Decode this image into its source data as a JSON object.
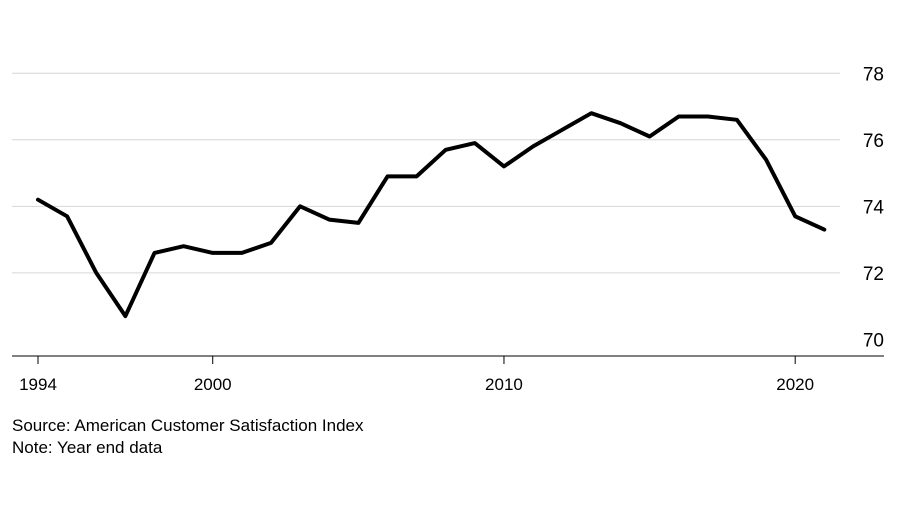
{
  "chart_data": {
    "type": "line",
    "title": "",
    "xlabel": "",
    "ylabel": "",
    "xlim": [
      1994,
      2022.5
    ],
    "ylim": [
      69.5,
      79
    ],
    "y_ticks": [
      70,
      72,
      74,
      76,
      78
    ],
    "x_ticks": [
      1994,
      2000,
      2010,
      2020
    ],
    "grid": "horizontal",
    "y_axis_side": "right",
    "series": [
      {
        "color": "#000000",
        "x": [
          1994,
          1995,
          1996,
          1997,
          1998,
          1999,
          2000,
          2001,
          2002,
          2003,
          2004,
          2005,
          2006,
          2007,
          2008,
          2009,
          2010,
          2011,
          2012,
          2013,
          2014,
          2015,
          2016,
          2017,
          2018,
          2019,
          2020,
          2021
        ],
        "values": [
          74.2,
          73.7,
          72.0,
          70.7,
          72.6,
          72.8,
          72.6,
          72.6,
          72.9,
          74.0,
          73.6,
          73.5,
          74.9,
          74.9,
          75.7,
          75.9,
          75.2,
          75.8,
          76.3,
          76.8,
          76.5,
          76.1,
          76.7,
          76.7,
          76.6,
          75.4,
          73.7,
          73.3
        ]
      }
    ]
  },
  "footer": {
    "source": "Source: American Customer Satisfaction Index",
    "note": "Note: Year end data"
  }
}
